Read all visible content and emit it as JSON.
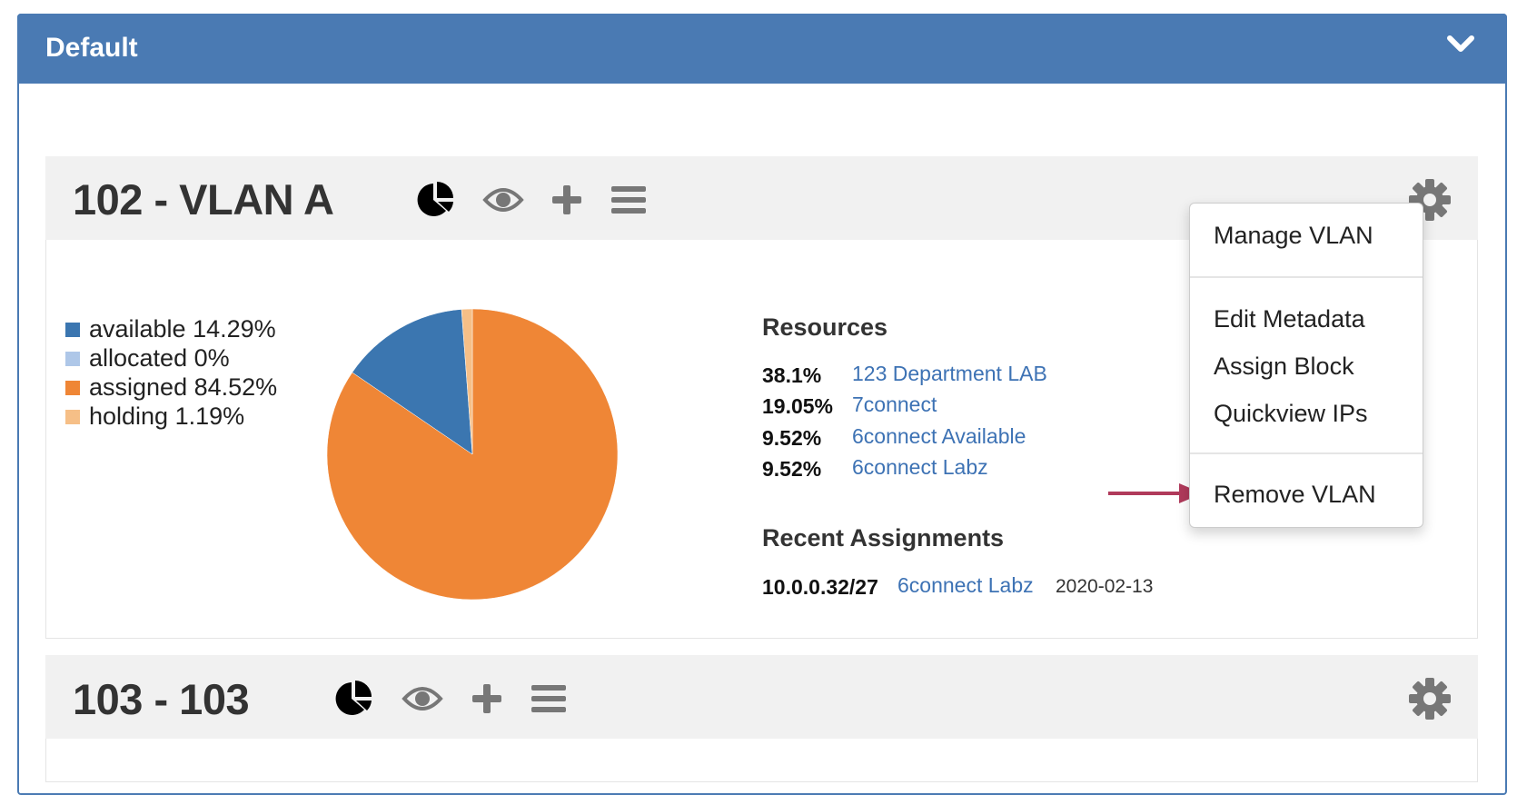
{
  "panel": {
    "title": "Default",
    "collapse_icon": "chevron-down-icon",
    "header_color": "#4a7ab3"
  },
  "vlans": [
    {
      "title": "102 - VLAN A",
      "icons": [
        "pie-chart-icon",
        "eye-icon",
        "plus-icon",
        "bars-icon",
        "gear-icon"
      ],
      "legend": [
        {
          "label": "available 14.29%",
          "color": "#3b76b0"
        },
        {
          "label": "allocated 0%",
          "color": "#aec7e8"
        },
        {
          "label": "assigned 84.52%",
          "color": "#ef8636"
        },
        {
          "label": "holding 1.19%",
          "color": "#f6bf87"
        }
      ],
      "resources_heading": "Resources",
      "resources": [
        {
          "pct": "38.1%",
          "name": "123 Department LAB"
        },
        {
          "pct": "19.05%",
          "name": "7connect"
        },
        {
          "pct": "9.52%",
          "name": "6connect Available"
        },
        {
          "pct": "9.52%",
          "name": "6connect Labz"
        }
      ],
      "recent_heading": "Recent Assignments",
      "recent": [
        {
          "block": "10.0.0.32/27",
          "name": "6connect Labz",
          "date": "2020-02-13"
        }
      ]
    },
    {
      "title": "103 - 103",
      "icons": [
        "pie-chart-icon",
        "eye-icon",
        "plus-icon",
        "bars-icon",
        "gear-icon"
      ]
    }
  ],
  "menu": {
    "items": [
      "Manage VLAN",
      "Edit Metadata",
      "Assign Block",
      "Quickview IPs",
      "Remove VLAN"
    ]
  },
  "annotation_arrow_color": "#b03a5b",
  "chart_data": {
    "type": "pie",
    "categories": [
      "available",
      "allocated",
      "assigned",
      "holding"
    ],
    "values": [
      14.29,
      0,
      84.52,
      1.19
    ],
    "colors": [
      "#3b76b0",
      "#aec7e8",
      "#ef8636",
      "#f6bf87"
    ],
    "legend": "left"
  }
}
